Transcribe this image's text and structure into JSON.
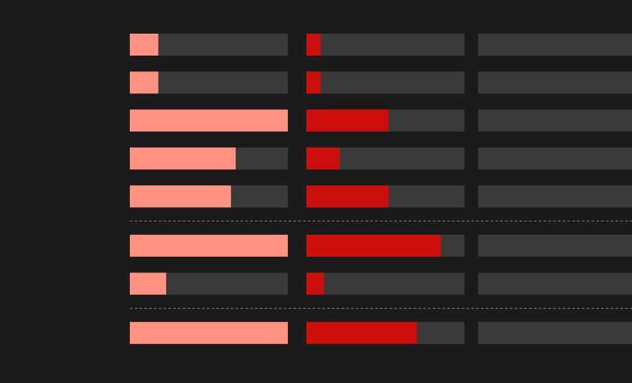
{
  "groups": [
    {
      "rows": [
        [
          18,
          9
        ],
        [
          18,
          9
        ],
        [
          100,
          52
        ],
        [
          67,
          21
        ],
        [
          64,
          52
        ]
      ]
    },
    {
      "rows": [
        [
          100,
          85
        ],
        [
          23,
          11
        ]
      ]
    },
    {
      "rows": [
        [
          100,
          70
        ]
      ]
    }
  ]
}
